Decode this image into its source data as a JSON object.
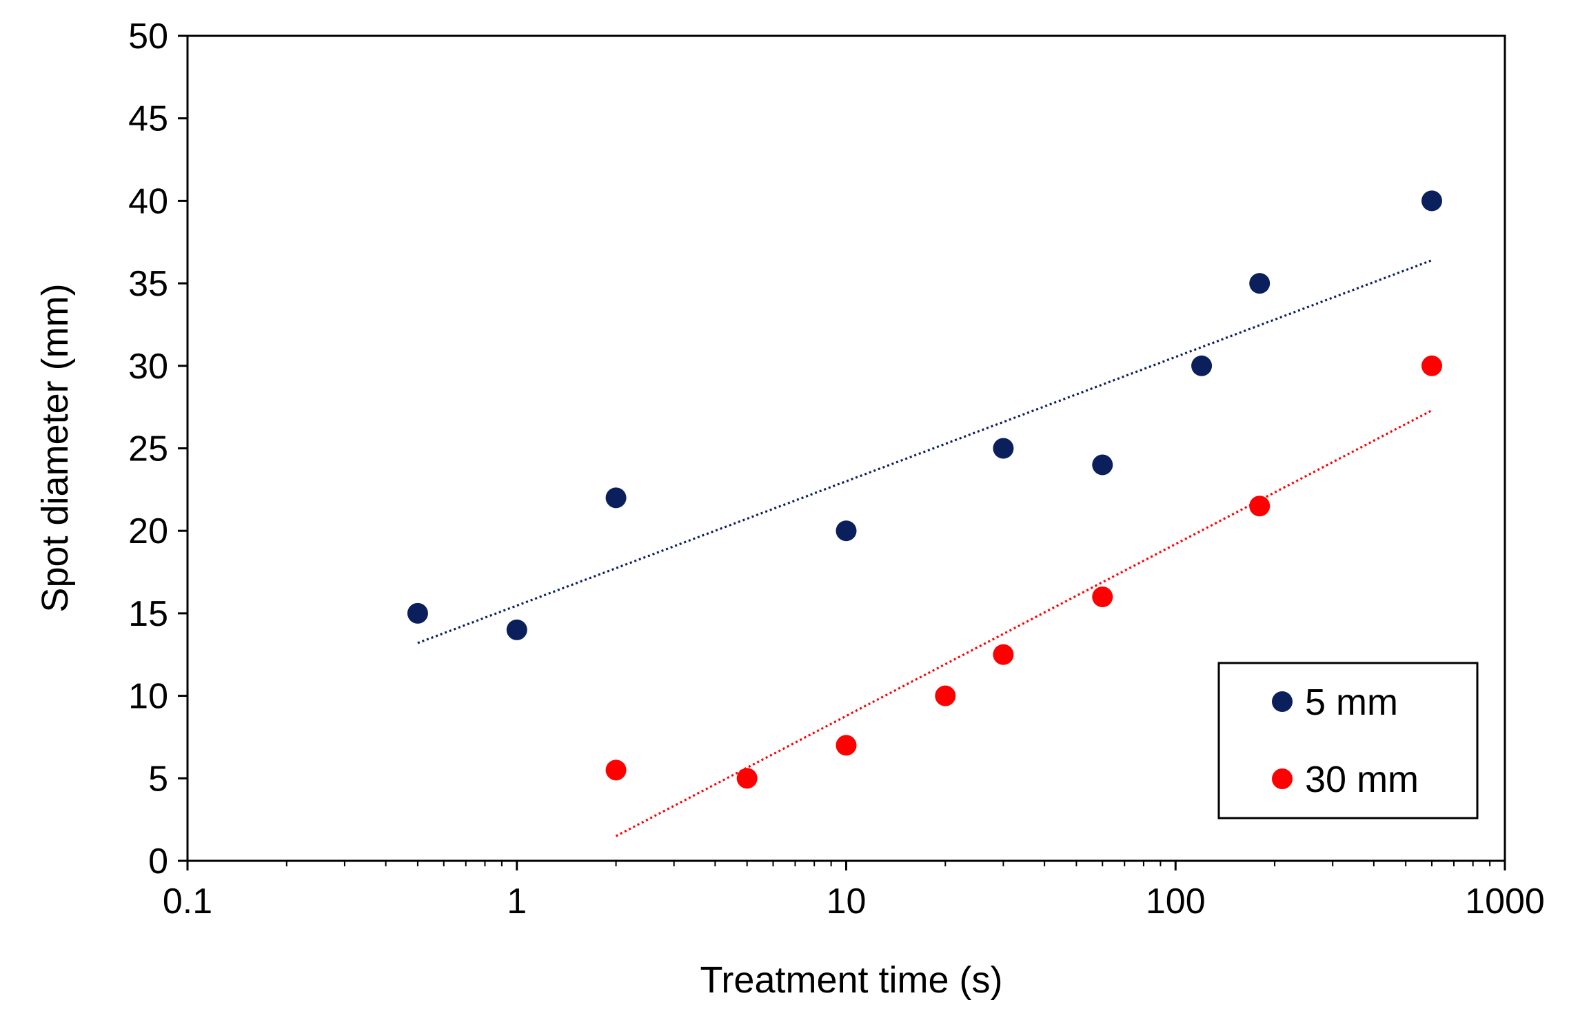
{
  "chart_data": {
    "type": "scatter",
    "xlabel": "Treatment time (s)",
    "ylabel": "Spot diameter (mm)",
    "x_scale": "log",
    "xlim": [
      0.1,
      1000
    ],
    "ylim": [
      0,
      50
    ],
    "x_ticks": [
      "0.1",
      "1",
      "10",
      "100",
      "1000"
    ],
    "y_ticks": [
      "0",
      "5",
      "10",
      "15",
      "20",
      "25",
      "30",
      "35",
      "40",
      "45",
      "50"
    ],
    "grid": false,
    "legend_position": "bottom-right",
    "series": [
      {
        "name": "5 mm",
        "color": "#0b1f5c",
        "x": [
          0.5,
          1,
          2,
          10,
          30,
          60,
          120,
          180,
          600
        ],
        "y": [
          15,
          14,
          22,
          20,
          25,
          24,
          30,
          35,
          40
        ],
        "trendline": {
          "type": "log",
          "style": "dotted",
          "x_range": [
            0.5,
            600
          ],
          "y_range": [
            13.2,
            36.4
          ]
        }
      },
      {
        "name": "30 mm",
        "color": "#ff0000",
        "x": [
          2,
          5,
          10,
          20,
          30,
          60,
          180,
          600
        ],
        "y": [
          5.5,
          5,
          7,
          10,
          12.5,
          16,
          21.5,
          30
        ],
        "trendline": {
          "type": "log",
          "style": "dotted",
          "x_range": [
            2,
            600
          ],
          "y_range": [
            1.5,
            27.3
          ]
        }
      }
    ]
  }
}
